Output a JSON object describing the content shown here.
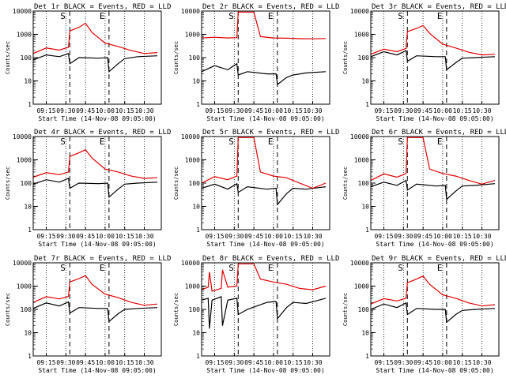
{
  "figure": {
    "ylabel": "Counts/sec",
    "xlabel_prefix": "Start Time",
    "ytick_labels": [
      "1",
      "10",
      "100",
      "1000",
      "10000"
    ],
    "colors": {
      "events": "#000000",
      "lld": "#e00000",
      "frame": "#000000"
    }
  },
  "chart_data": [
    {
      "type": "line",
      "title": "Det 1r BLACK = Events, RED = LLD",
      "xlabel": "Start Time (14-Nov-08 09:05:00)",
      "ylabel": "Counts/sec",
      "yscale": "log",
      "ylim": [
        1,
        10000
      ],
      "xlim": [
        "09:05",
        "10:43"
      ],
      "xticks": [
        "09:15",
        "09:30",
        "09:45",
        "10:00",
        "10:15",
        "10:30"
      ],
      "markers": [
        {
          "label": "S",
          "time": "09:33"
        },
        {
          "label": "E",
          "time": "10:03"
        }
      ],
      "series": [
        {
          "name": "Events",
          "x": [
            "09:05",
            "09:15",
            "09:25",
            "09:32",
            "09:33",
            "09:40",
            "09:55",
            "10:02",
            "10:03",
            "10:10",
            "10:15",
            "10:25",
            "10:40"
          ],
          "y": [
            80,
            130,
            110,
            150,
            55,
            100,
            95,
            100,
            25,
            55,
            90,
            110,
            120
          ]
        },
        {
          "name": "LLD",
          "x": [
            "09:05",
            "09:15",
            "09:25",
            "09:32",
            "09:33",
            "09:40",
            "09:45",
            "09:50",
            "10:00",
            "10:10",
            "10:20",
            "10:30",
            "10:40"
          ],
          "y": [
            150,
            260,
            210,
            280,
            1400,
            2000,
            3000,
            1200,
            420,
            300,
            200,
            150,
            165
          ]
        }
      ]
    },
    {
      "type": "line",
      "title": "Det 2r BLACK = Events, RED = LLD",
      "xlabel": "Start Time (14-Nov-08 09:05:00)",
      "ylabel": "Counts/sec",
      "yscale": "log",
      "ylim": [
        1,
        10000
      ],
      "xlim": [
        "09:05",
        "10:43"
      ],
      "xticks": [
        "09:15",
        "09:30",
        "09:45",
        "10:00",
        "10:15",
        "10:30"
      ],
      "markers": [
        {
          "label": "S",
          "time": "09:33"
        },
        {
          "label": "E",
          "time": "10:03"
        }
      ],
      "series": [
        {
          "name": "Events",
          "x": [
            "09:05",
            "09:15",
            "09:25",
            "09:32",
            "09:33",
            "09:40",
            "09:55",
            "10:02",
            "10:03",
            "10:10",
            "10:15",
            "10:25",
            "10:40"
          ],
          "y": [
            25,
            45,
            30,
            55,
            18,
            25,
            20,
            20,
            7,
            14,
            18,
            22,
            25
          ]
        },
        {
          "name": "LLD",
          "x": [
            "09:05",
            "09:15",
            "09:25",
            "09:32",
            "09:33",
            "09:40",
            "09:45",
            "09:50",
            "10:00",
            "10:10",
            "10:20",
            "10:30",
            "10:40"
          ],
          "y": [
            700,
            750,
            700,
            720,
            9000,
            9000,
            9000,
            800,
            700,
            680,
            650,
            640,
            660
          ]
        }
      ]
    },
    {
      "type": "line",
      "title": "Det 3r BLACK = Events, RED = LLD",
      "xlabel": "Start Time (14-Nov-08 09:05:00)",
      "ylabel": "Counts/sec",
      "yscale": "log",
      "ylim": [
        1,
        10000
      ],
      "xlim": [
        "09:05",
        "10:43"
      ],
      "xticks": [
        "09:15",
        "09:30",
        "09:45",
        "10:00",
        "10:15",
        "10:30"
      ],
      "markers": [
        {
          "label": "S",
          "time": "09:33"
        },
        {
          "label": "E",
          "time": "10:03"
        }
      ],
      "series": [
        {
          "name": "Events",
          "x": [
            "09:05",
            "09:15",
            "09:25",
            "09:32",
            "09:33",
            "09:40",
            "09:55",
            "10:02",
            "10:03",
            "10:10",
            "10:15",
            "10:25",
            "10:40"
          ],
          "y": [
            110,
            180,
            130,
            200,
            70,
            120,
            110,
            110,
            30,
            60,
            95,
            100,
            110
          ]
        },
        {
          "name": "LLD",
          "x": [
            "09:05",
            "09:15",
            "09:25",
            "09:32",
            "09:33",
            "09:40",
            "09:45",
            "09:50",
            "10:00",
            "10:10",
            "10:20",
            "10:30",
            "10:40"
          ],
          "y": [
            140,
            230,
            180,
            250,
            1300,
            1800,
            2400,
            1100,
            380,
            260,
            170,
            130,
            140
          ]
        }
      ]
    },
    {
      "type": "line",
      "title": "Det 4r BLACK = Events, RED = LLD",
      "xlabel": "Start Time (14-Nov-08 09:05:00)",
      "ylabel": "Counts/sec",
      "yscale": "log",
      "ylim": [
        1,
        10000
      ],
      "xlim": [
        "09:05",
        "10:43"
      ],
      "xticks": [
        "09:15",
        "09:30",
        "09:45",
        "10:00",
        "10:15",
        "10:30"
      ],
      "markers": [
        {
          "label": "S",
          "time": "09:33"
        },
        {
          "label": "E",
          "time": "10:03"
        }
      ],
      "series": [
        {
          "name": "Events",
          "x": [
            "09:05",
            "09:15",
            "09:25",
            "09:32",
            "09:33",
            "09:40",
            "09:55",
            "10:02",
            "10:03",
            "10:10",
            "10:15",
            "10:25",
            "10:40"
          ],
          "y": [
            90,
            140,
            110,
            160,
            60,
            100,
            95,
            100,
            25,
            55,
            90,
            100,
            110
          ]
        },
        {
          "name": "LLD",
          "x": [
            "09:05",
            "09:15",
            "09:25",
            "09:32",
            "09:33",
            "09:40",
            "09:45",
            "09:50",
            "10:00",
            "10:10",
            "10:20",
            "10:30",
            "10:40"
          ],
          "y": [
            180,
            280,
            230,
            300,
            1400,
            2000,
            2700,
            1200,
            400,
            300,
            200,
            160,
            170
          ]
        }
      ]
    },
    {
      "type": "line",
      "title": "Det 5r BLACK = Events, RED = LLD",
      "xlabel": "Start Time (14-Nov-08 09:05:00)",
      "ylabel": "Counts/sec",
      "yscale": "log",
      "ylim": [
        1,
        10000
      ],
      "xlim": [
        "09:05",
        "10:43"
      ],
      "xticks": [
        "09:15",
        "09:30",
        "09:45",
        "10:00",
        "10:15",
        "10:30"
      ],
      "markers": [
        {
          "label": "S",
          "time": "09:33"
        },
        {
          "label": "E",
          "time": "10:03"
        }
      ],
      "series": [
        {
          "name": "Events",
          "x": [
            "09:05",
            "09:15",
            "09:25",
            "09:32",
            "09:33",
            "09:40",
            "09:55",
            "10:02",
            "10:03",
            "10:10",
            "10:15",
            "10:25",
            "10:40"
          ],
          "y": [
            60,
            90,
            55,
            95,
            40,
            70,
            55,
            60,
            12,
            35,
            60,
            55,
            70
          ]
        },
        {
          "name": "LLD",
          "x": [
            "09:05",
            "09:15",
            "09:25",
            "09:32",
            "09:33",
            "09:40",
            "09:45",
            "09:50",
            "10:00",
            "10:10",
            "10:20",
            "10:30",
            "10:40"
          ],
          "y": [
            100,
            190,
            140,
            200,
            9000,
            9000,
            9000,
            300,
            200,
            170,
            100,
            60,
            100
          ]
        }
      ]
    },
    {
      "type": "line",
      "title": "Det 6r BLACK = Events, RED = LLD",
      "xlabel": "Start Time (14-Nov-08 09:05:00)",
      "ylabel": "Counts/sec",
      "yscale": "log",
      "ylim": [
        1,
        10000
      ],
      "xlim": [
        "09:05",
        "10:43"
      ],
      "xticks": [
        "09:15",
        "09:30",
        "09:45",
        "10:00",
        "10:15",
        "10:30"
      ],
      "markers": [
        {
          "label": "S",
          "time": "09:33"
        },
        {
          "label": "E",
          "time": "10:03"
        }
      ],
      "series": [
        {
          "name": "Events",
          "x": [
            "09:05",
            "09:15",
            "09:25",
            "09:32",
            "09:33",
            "09:40",
            "09:55",
            "10:02",
            "10:03",
            "10:10",
            "10:15",
            "10:25",
            "10:40"
          ],
          "y": [
            70,
            110,
            80,
            130,
            50,
            90,
            75,
            80,
            20,
            45,
            75,
            80,
            95
          ]
        },
        {
          "name": "LLD",
          "x": [
            "09:05",
            "09:15",
            "09:25",
            "09:32",
            "09:33",
            "09:40",
            "09:45",
            "09:50",
            "10:00",
            "10:10",
            "10:20",
            "10:30",
            "10:40"
          ],
          "y": [
            130,
            250,
            180,
            260,
            9000,
            9000,
            9000,
            400,
            260,
            200,
            130,
            90,
            130
          ]
        }
      ]
    },
    {
      "type": "line",
      "title": "Det 7r BLACK = Events, RED = LLD",
      "xlabel": "Start Time (14-Nov-08 09:05:00)",
      "ylabel": "Counts/sec",
      "yscale": "log",
      "ylim": [
        1,
        10000
      ],
      "xlim": [
        "09:05",
        "10:43"
      ],
      "xticks": [
        "09:15",
        "09:30",
        "09:45",
        "10:00",
        "10:15",
        "10:30"
      ],
      "markers": [
        {
          "label": "S",
          "time": "09:33"
        },
        {
          "label": "E",
          "time": "10:03"
        }
      ],
      "series": [
        {
          "name": "Events",
          "x": [
            "09:05",
            "09:15",
            "09:25",
            "09:32",
            "09:33",
            "09:40",
            "09:55",
            "10:02",
            "10:03",
            "10:10",
            "10:15",
            "10:25",
            "10:40"
          ],
          "y": [
            110,
            190,
            140,
            210,
            70,
            120,
            110,
            110,
            30,
            65,
            100,
            110,
            120
          ]
        },
        {
          "name": "LLD",
          "x": [
            "09:05",
            "09:15",
            "09:25",
            "09:32",
            "09:33",
            "09:40",
            "09:45",
            "09:50",
            "10:00",
            "10:10",
            "10:20",
            "10:30",
            "10:40"
          ],
          "y": [
            200,
            350,
            280,
            360,
            1500,
            2100,
            2800,
            1200,
            450,
            320,
            200,
            150,
            170
          ]
        }
      ]
    },
    {
      "type": "line",
      "title": "Det 8r BLACK = Events, RED = LLD",
      "xlabel": "Start Time (14-Nov-08 09:05:00)",
      "ylabel": "Counts/sec",
      "yscale": "log",
      "ylim": [
        1,
        10000
      ],
      "xlim": [
        "09:05",
        "10:43"
      ],
      "xticks": [
        "09:15",
        "09:30",
        "09:45",
        "10:00",
        "10:15",
        "10:30"
      ],
      "markers": [
        {
          "label": "S",
          "time": "09:33"
        },
        {
          "label": "E",
          "time": "10:03"
        }
      ],
      "series": [
        {
          "name": "Events",
          "x": [
            "09:05",
            "09:10",
            "09:11",
            "09:13",
            "09:20",
            "09:21",
            "09:25",
            "09:32",
            "09:33",
            "09:40",
            "09:55",
            "10:02",
            "10:03",
            "10:10",
            "10:15",
            "10:25",
            "10:40"
          ],
          "y": [
            250,
            300,
            15,
            250,
            350,
            20,
            250,
            300,
            60,
            100,
            200,
            220,
            40,
            120,
            200,
            180,
            300
          ]
        },
        {
          "name": "LLD",
          "x": [
            "09:05",
            "09:10",
            "09:11",
            "09:13",
            "09:20",
            "09:21",
            "09:25",
            "09:32",
            "09:33",
            "09:40",
            "09:45",
            "09:50",
            "10:00",
            "10:10",
            "10:20",
            "10:30",
            "10:40"
          ],
          "y": [
            700,
            900,
            4000,
            600,
            800,
            5000,
            900,
            1000,
            9000,
            9000,
            9000,
            2000,
            1500,
            1200,
            800,
            700,
            1000
          ]
        }
      ]
    },
    {
      "type": "line",
      "title": "Det 9r BLACK = Events, RED = LLD",
      "xlabel": "Start Time (14-Nov-08 09:05:00)",
      "ylabel": "Counts/sec",
      "yscale": "log",
      "ylim": [
        1,
        10000
      ],
      "xlim": [
        "09:05",
        "10:43"
      ],
      "xticks": [
        "09:15",
        "09:30",
        "09:45",
        "10:00",
        "10:15",
        "10:30"
      ],
      "markers": [
        {
          "label": "S",
          "time": "09:33"
        },
        {
          "label": "E",
          "time": "10:03"
        }
      ],
      "series": [
        {
          "name": "Events",
          "x": [
            "09:05",
            "09:15",
            "09:25",
            "09:32",
            "09:33",
            "09:40",
            "09:55",
            "10:02",
            "10:03",
            "10:10",
            "10:15",
            "10:25",
            "10:40"
          ],
          "y": [
            100,
            170,
            120,
            190,
            60,
            110,
            100,
            100,
            28,
            60,
            90,
            100,
            110
          ]
        },
        {
          "name": "LLD",
          "x": [
            "09:05",
            "09:15",
            "09:25",
            "09:32",
            "09:33",
            "09:40",
            "09:45",
            "09:50",
            "10:00",
            "10:10",
            "10:20",
            "10:30",
            "10:40"
          ],
          "y": [
            170,
            290,
            230,
            300,
            1400,
            2000,
            2700,
            1200,
            420,
            300,
            190,
            140,
            160
          ]
        }
      ]
    }
  ]
}
